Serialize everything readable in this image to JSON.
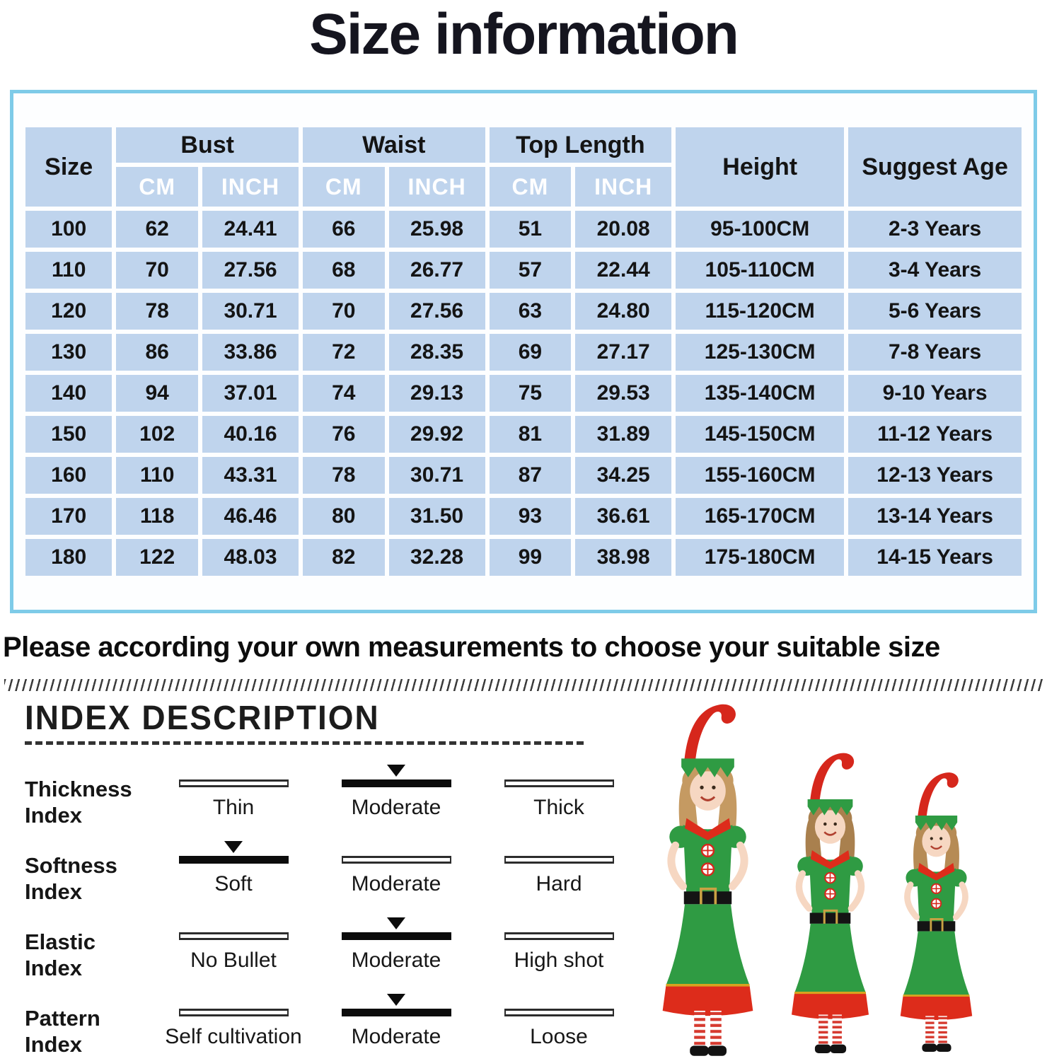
{
  "page_title": "Size information",
  "size_table": {
    "columns": {
      "size": "Size",
      "bust": "Bust",
      "waist": "Waist",
      "top_length": "Top Length",
      "height": "Height",
      "suggest_age": "Suggest Age",
      "cm": "CM",
      "inch": "INCH"
    },
    "rows": [
      {
        "size": "100",
        "bust_cm": "62",
        "bust_inch": "24.41",
        "waist_cm": "66",
        "waist_inch": "25.98",
        "top_cm": "51",
        "top_inch": "20.08",
        "height": "95-100CM",
        "age": "2-3 Years"
      },
      {
        "size": "110",
        "bust_cm": "70",
        "bust_inch": "27.56",
        "waist_cm": "68",
        "waist_inch": "26.77",
        "top_cm": "57",
        "top_inch": "22.44",
        "height": "105-110CM",
        "age": "3-4 Years"
      },
      {
        "size": "120",
        "bust_cm": "78",
        "bust_inch": "30.71",
        "waist_cm": "70",
        "waist_inch": "27.56",
        "top_cm": "63",
        "top_inch": "24.80",
        "height": "115-120CM",
        "age": "5-6 Years"
      },
      {
        "size": "130",
        "bust_cm": "86",
        "bust_inch": "33.86",
        "waist_cm": "72",
        "waist_inch": "28.35",
        "top_cm": "69",
        "top_inch": "27.17",
        "height": "125-130CM",
        "age": "7-8 Years"
      },
      {
        "size": "140",
        "bust_cm": "94",
        "bust_inch": "37.01",
        "waist_cm": "74",
        "waist_inch": "29.13",
        "top_cm": "75",
        "top_inch": "29.53",
        "height": "135-140CM",
        "age": "9-10 Years"
      },
      {
        "size": "150",
        "bust_cm": "102",
        "bust_inch": "40.16",
        "waist_cm": "76",
        "waist_inch": "29.92",
        "top_cm": "81",
        "top_inch": "31.89",
        "height": "145-150CM",
        "age": "11-12 Years"
      },
      {
        "size": "160",
        "bust_cm": "110",
        "bust_inch": "43.31",
        "waist_cm": "78",
        "waist_inch": "30.71",
        "top_cm": "87",
        "top_inch": "34.25",
        "height": "155-160CM",
        "age": "12-13 Years"
      },
      {
        "size": "170",
        "bust_cm": "118",
        "bust_inch": "46.46",
        "waist_cm": "80",
        "waist_inch": "31.50",
        "top_cm": "93",
        "top_inch": "36.61",
        "height": "165-170CM",
        "age": "13-14 Years"
      },
      {
        "size": "180",
        "bust_cm": "122",
        "bust_inch": "48.03",
        "waist_cm": "82",
        "waist_inch": "32.28",
        "top_cm": "99",
        "top_inch": "38.98",
        "height": "175-180CM",
        "age": "14-15 Years"
      }
    ]
  },
  "note": "Please according your own measurements to choose your suitable size",
  "index_description": {
    "title": "INDEX DESCRIPTION",
    "rows": [
      {
        "label": "Thickness Index",
        "options": [
          {
            "label": "Thin",
            "selected": false
          },
          {
            "label": "Moderate",
            "selected": true
          },
          {
            "label": "Thick",
            "selected": false
          }
        ]
      },
      {
        "label": "Softness Index",
        "options": [
          {
            "label": "Soft",
            "selected": true
          },
          {
            "label": "Moderate",
            "selected": false
          },
          {
            "label": "Hard",
            "selected": false
          }
        ]
      },
      {
        "label": "Elastic Index",
        "options": [
          {
            "label": "No Bullet",
            "selected": false
          },
          {
            "label": "Moderate",
            "selected": true
          },
          {
            "label": "High shot",
            "selected": false
          }
        ]
      },
      {
        "label": "Pattern Index",
        "options": [
          {
            "label": "Self cultivation",
            "selected": false
          },
          {
            "label": "Moderate",
            "selected": true
          },
          {
            "label": "Loose",
            "selected": false
          }
        ]
      }
    ]
  },
  "colors": {
    "panel_border": "#7ecbe8",
    "table_cell_bg": "#bfd4ed",
    "table_subheader_text": "#ffffff",
    "text": "#141414",
    "elf_hat_red": "#d6271c",
    "elf_dress_green": "#2f9b43",
    "stocking_red": "#d63a2f"
  }
}
